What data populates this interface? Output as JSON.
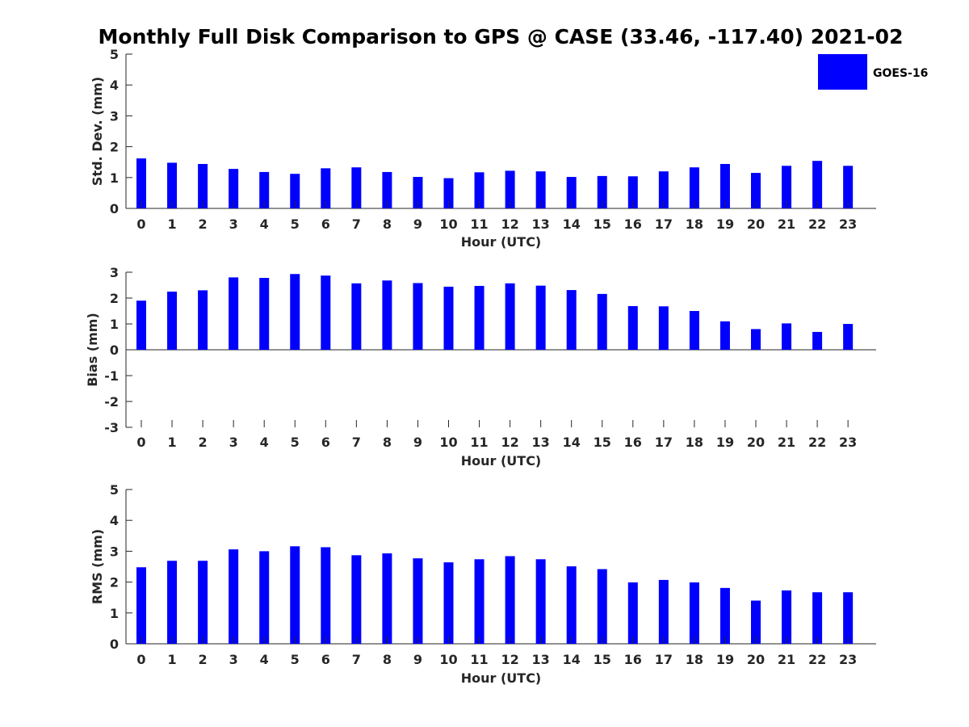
{
  "title": "Monthly Full Disk Comparison to GPS @ CASE (33.46, -117.40) 2021-02",
  "legend": {
    "label": "GOES-16",
    "color": "#0000ff"
  },
  "chart_data": [
    {
      "type": "bar",
      "panel": "std-dev",
      "xlabel": "Hour (UTC)",
      "ylabel": "Std. Dev. (mm)",
      "ylim": [
        0,
        5
      ],
      "yticks": [
        0,
        1,
        2,
        3,
        4,
        5
      ],
      "categories": [
        "0",
        "1",
        "2",
        "3",
        "4",
        "5",
        "6",
        "7",
        "8",
        "9",
        "10",
        "11",
        "12",
        "13",
        "14",
        "15",
        "16",
        "17",
        "18",
        "19",
        "20",
        "21",
        "22",
        "23"
      ],
      "series": [
        {
          "name": "GOES-16",
          "color": "#0000ff",
          "values": [
            1.62,
            1.48,
            1.44,
            1.28,
            1.18,
            1.12,
            1.3,
            1.33,
            1.18,
            1.02,
            0.98,
            1.17,
            1.22,
            1.2,
            1.02,
            1.05,
            1.04,
            1.2,
            1.33,
            1.44,
            1.15,
            1.38,
            1.54,
            1.38
          ]
        }
      ],
      "grid": false,
      "legend_position": "top-right"
    },
    {
      "type": "bar",
      "panel": "bias",
      "xlabel": "Hour (UTC)",
      "ylabel": "Bias (mm)",
      "ylim": [
        -3,
        3
      ],
      "yticks": [
        -3,
        -2,
        -1,
        0,
        1,
        2,
        3
      ],
      "categories": [
        "0",
        "1",
        "2",
        "3",
        "4",
        "5",
        "6",
        "7",
        "8",
        "9",
        "10",
        "11",
        "12",
        "13",
        "14",
        "15",
        "16",
        "17",
        "18",
        "19",
        "20",
        "21",
        "22",
        "23"
      ],
      "series": [
        {
          "name": "GOES-16",
          "color": "#0000ff",
          "values": [
            1.9,
            2.25,
            2.3,
            2.8,
            2.78,
            2.93,
            2.87,
            2.57,
            2.68,
            2.58,
            2.44,
            2.47,
            2.57,
            2.48,
            2.31,
            2.16,
            1.69,
            1.68,
            1.5,
            1.1,
            0.8,
            1.02,
            0.69,
            1.0
          ]
        }
      ],
      "grid": false
    },
    {
      "type": "bar",
      "panel": "rms",
      "xlabel": "Hour (UTC)",
      "ylabel": "RMS (mm)",
      "ylim": [
        0,
        5
      ],
      "yticks": [
        0,
        1,
        2,
        3,
        4,
        5
      ],
      "categories": [
        "0",
        "1",
        "2",
        "3",
        "4",
        "5",
        "6",
        "7",
        "8",
        "9",
        "10",
        "11",
        "12",
        "13",
        "14",
        "15",
        "16",
        "17",
        "18",
        "19",
        "20",
        "21",
        "22",
        "23"
      ],
      "series": [
        {
          "name": "GOES-16",
          "color": "#0000ff",
          "values": [
            2.48,
            2.69,
            2.69,
            3.06,
            3.0,
            3.16,
            3.13,
            2.87,
            2.93,
            2.77,
            2.64,
            2.74,
            2.84,
            2.74,
            2.51,
            2.42,
            1.99,
            2.07,
            1.99,
            1.81,
            1.4,
            1.73,
            1.67,
            1.67
          ]
        }
      ],
      "grid": false
    }
  ]
}
